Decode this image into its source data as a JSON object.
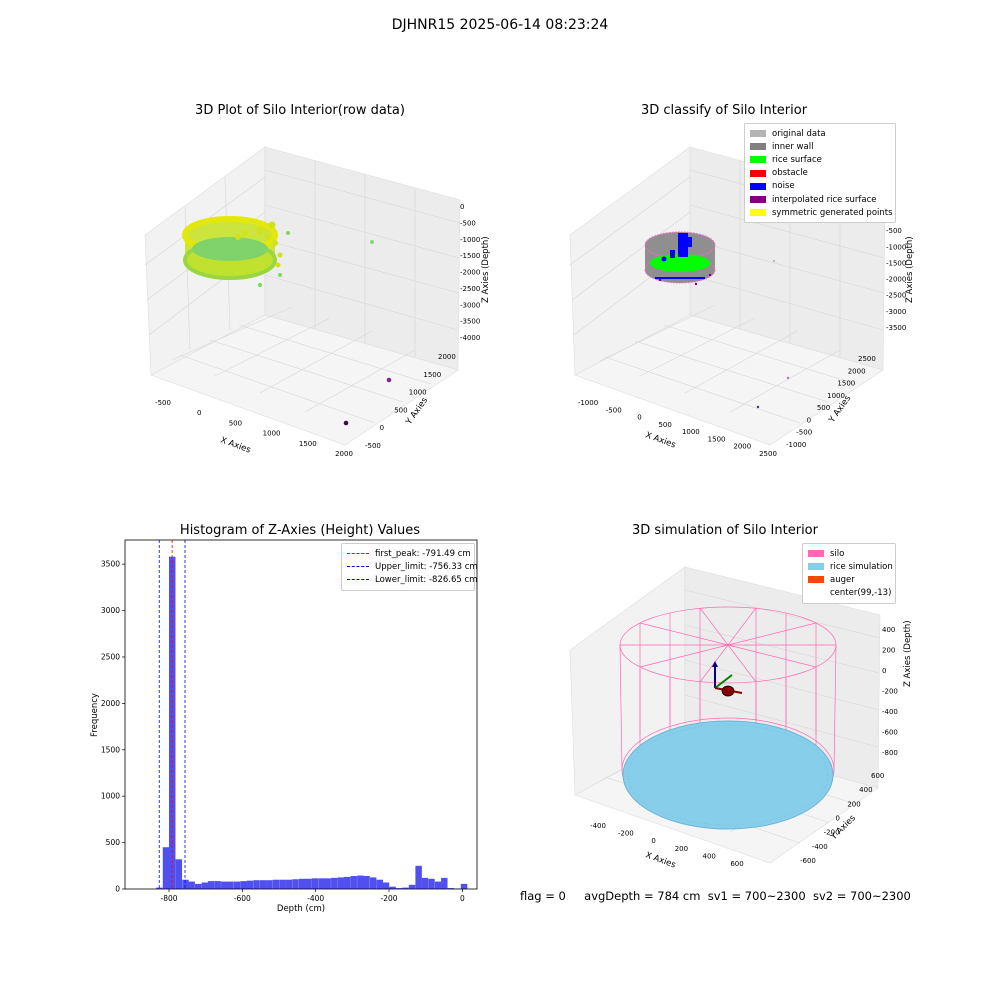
{
  "figure": {
    "suptitle": "DJHNR15 2025-06-14 08:23:24"
  },
  "panel_raw": {
    "title": "3D Plot of Silo Interior(row data)",
    "xlabel": "X Axies",
    "ylabel": "Y Axies",
    "zlabel": "Z Axies (Depth)",
    "x_ticks": [
      "-500",
      "0",
      "500",
      "1000",
      "1500",
      "2000"
    ],
    "y_ticks": [
      "-500",
      "0",
      "500",
      "1000",
      "1500",
      "2000"
    ],
    "z_ticks": [
      "0",
      "-500",
      "-1000",
      "-1500",
      "-2000",
      "-2500",
      "-3000",
      "-3500",
      "-4000"
    ]
  },
  "panel_classify": {
    "title": "3D classify of Silo Interior",
    "xlabel": "X Axies",
    "ylabel": "Y Axies",
    "zlabel": "Z Axies (Depth)",
    "x_ticks": [
      "-1000",
      "-500",
      "0",
      "500",
      "1000",
      "1500",
      "2000",
      "2500"
    ],
    "y_ticks": [
      "-1000",
      "-500",
      "0",
      "500",
      "1000",
      "1500",
      "2000",
      "2500"
    ],
    "z_ticks": [
      "0",
      "-500",
      "-1000",
      "-1500",
      "-2000",
      "-2500",
      "-3000",
      "-3500"
    ],
    "legend": [
      {
        "label": "original data",
        "color": "#b3b3b3"
      },
      {
        "label": "inner wall",
        "color": "#808080"
      },
      {
        "label": "rice surface",
        "color": "#00ff00"
      },
      {
        "label": "obstacle",
        "color": "#ff0000"
      },
      {
        "label": "noise",
        "color": "#0000ff"
      },
      {
        "label": "interpolated rice surface",
        "color": "#800080"
      },
      {
        "label": "symmetric generated points",
        "color": "#ffff00"
      }
    ]
  },
  "panel_hist": {
    "title": "Histogram of Z-Axies (Height) Values",
    "xlabel": "Depth (cm)",
    "ylabel": "Frequency",
    "x_ticks": [
      "-800",
      "-600",
      "-400",
      "-200",
      "0"
    ],
    "y_ticks": [
      "0",
      "500",
      "1000",
      "1500",
      "2000",
      "2500",
      "3000",
      "3500"
    ],
    "legend": [
      {
        "label": "first_peak: -791.49 cm",
        "color": "#ff0000"
      },
      {
        "label": "Upper_limit: -756.33 cm",
        "color": "#0000ff"
      },
      {
        "label": "Lower_limit: -826.65 cm",
        "color": "#0000ff"
      }
    ],
    "bar_color": "#5050f0"
  },
  "panel_sim": {
    "title": "3D simulation of Silo Interior",
    "xlabel": "X Axies",
    "ylabel": "Y Axies",
    "zlabel": "Z Axies (Depth)",
    "x_ticks": [
      "-400",
      "-200",
      "0",
      "200",
      "400",
      "600"
    ],
    "y_ticks": [
      "-600",
      "-400",
      "-200",
      "0",
      "200",
      "400",
      "600"
    ],
    "z_ticks": [
      "400",
      "200",
      "0",
      "-200",
      "-400",
      "-600",
      "-800"
    ],
    "legend": [
      {
        "label": "silo",
        "color": "#ff69b4"
      },
      {
        "label": "rice simulation",
        "color": "#87ceeb"
      },
      {
        "label": "auger",
        "color": "#ff4500"
      },
      {
        "label": "center(99,-13)",
        "color": ""
      }
    ]
  },
  "status": {
    "flag": "flag = 0",
    "avg_depth": "avgDepth = 784 cm",
    "sv1": "sv1 = 700~2300",
    "sv2": "sv2 = 700~2300"
  },
  "chart_data": [
    {
      "type": "scatter",
      "title": "3D Plot of Silo Interior(row data)",
      "xlabel": "X Axies",
      "ylabel": "Y Axies",
      "zlabel": "Z Axies (Depth)",
      "xlim": [
        -700,
        2300
      ],
      "ylim": [
        -700,
        2300
      ],
      "zlim": [
        -4100,
        200
      ],
      "note_series": [
        {
          "name": "",
          "points": [
            [
              0,
              0,
              -800
            ],
            [
              99,
              -13,
              -780
            ]
          ]
        }
      ]
    },
    {
      "type": "scatter",
      "title": "3D classify of Silo Interior",
      "xlabel": "X Axies",
      "ylabel": "Y Axies",
      "zlabel": "Z Axies (Depth)",
      "series": [
        {
          "name": "original data"
        },
        {
          "name": "inner wall"
        },
        {
          "name": "rice surface"
        },
        {
          "name": "obstacle"
        },
        {
          "name": "noise"
        },
        {
          "name": "interpolated rice surface"
        },
        {
          "name": "symmetric generated points"
        }
      ]
    },
    {
      "type": "bar",
      "title": "Histogram of Z-Axies (Height) Values",
      "xlabel": "Depth (cm)",
      "ylabel": "Frequency",
      "xlim": [
        -920,
        40
      ],
      "ylim": [
        0,
        3760
      ],
      "bin_width": 17.6,
      "bins": [
        [
          -835,
          15
        ],
        [
          -817,
          450
        ],
        [
          -800,
          3580
        ],
        [
          -782,
          320
        ],
        [
          -764,
          100
        ],
        [
          -747,
          80
        ],
        [
          -729,
          55
        ],
        [
          -711,
          70
        ],
        [
          -694,
          85
        ],
        [
          -676,
          85
        ],
        [
          -658,
          80
        ],
        [
          -641,
          80
        ],
        [
          -623,
          80
        ],
        [
          -605,
          85
        ],
        [
          -588,
          90
        ],
        [
          -570,
          95
        ],
        [
          -552,
          95
        ],
        [
          -535,
          95
        ],
        [
          -517,
          100
        ],
        [
          -499,
          100
        ],
        [
          -482,
          100
        ],
        [
          -464,
          105
        ],
        [
          -446,
          110
        ],
        [
          -429,
          110
        ],
        [
          -411,
          115
        ],
        [
          -393,
          115
        ],
        [
          -376,
          115
        ],
        [
          -358,
          120
        ],
        [
          -340,
          125
        ],
        [
          -323,
          130
        ],
        [
          -305,
          140
        ],
        [
          -287,
          145
        ],
        [
          -270,
          140
        ],
        [
          -252,
          125
        ],
        [
          -234,
          100
        ],
        [
          -217,
          70
        ],
        [
          -199,
          25
        ],
        [
          -181,
          10
        ],
        [
          -164,
          15
        ],
        [
          -146,
          45
        ],
        [
          -128,
          250
        ],
        [
          -111,
          120
        ],
        [
          -93,
          110
        ],
        [
          -75,
          80
        ],
        [
          -58,
          120
        ],
        [
          -40,
          10
        ],
        [
          -22,
          5
        ],
        [
          -4,
          55
        ]
      ],
      "vlines": [
        {
          "name": "first_peak",
          "x": -791.49,
          "color": "red"
        },
        {
          "name": "Upper_limit",
          "x": -756.33,
          "color": "blue"
        },
        {
          "name": "Lower_limit",
          "x": -826.65,
          "color": "blue"
        }
      ]
    },
    {
      "type": "scatter",
      "title": "3D simulation of Silo Interior",
      "xlabel": "X Axies",
      "ylabel": "Y Axies",
      "zlabel": "Z Axies (Depth)",
      "center": [
        99,
        -13
      ],
      "series": [
        {
          "name": "silo"
        },
        {
          "name": "rice simulation"
        },
        {
          "name": "auger"
        },
        {
          "name": "center(99,-13)"
        }
      ]
    }
  ]
}
